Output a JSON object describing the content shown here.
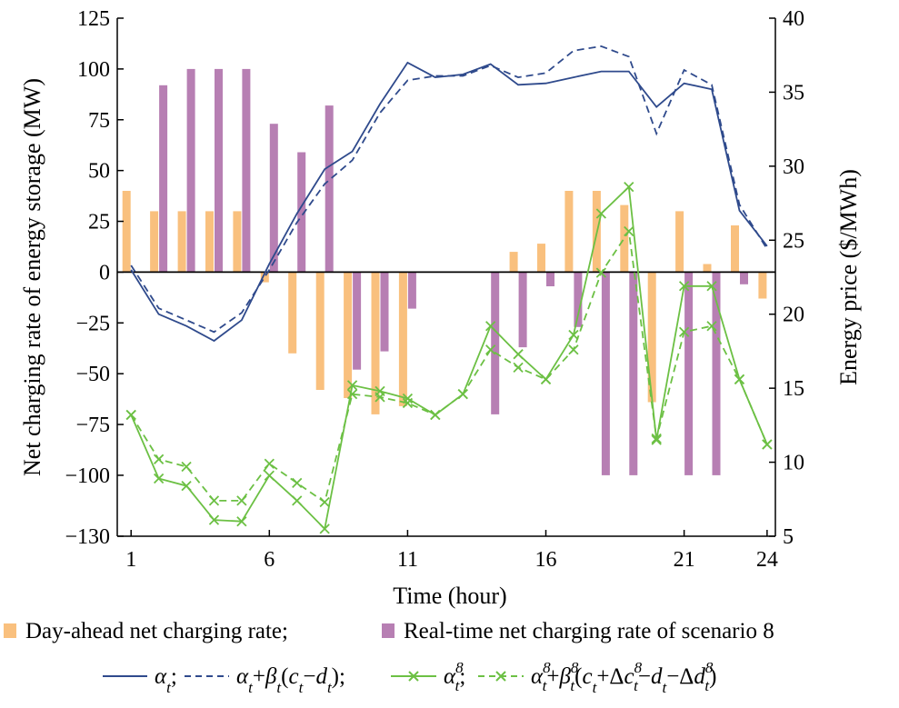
{
  "chart_data": {
    "type": "bar",
    "xlabel": "Time (hour)",
    "ylabel": "Net charging rate of energy storage (MW)",
    "ylabel_right": "Energy price ($/MWh)",
    "x_ticks": [
      1,
      6,
      11,
      16,
      21,
      24
    ],
    "x_range": [
      0.5,
      24.3
    ],
    "ylim_left": [
      -130,
      125
    ],
    "y_ticks_left": [
      125,
      100,
      75,
      50,
      25,
      0,
      -25,
      -50,
      -75,
      -100,
      -130
    ],
    "ylim_right": [
      5,
      40
    ],
    "y_ticks_right": [
      40,
      35,
      30,
      25,
      20,
      15,
      10,
      5
    ],
    "hours": [
      1,
      2,
      3,
      4,
      5,
      6,
      7,
      8,
      9,
      10,
      11,
      12,
      13,
      14,
      15,
      16,
      17,
      18,
      19,
      20,
      21,
      22,
      23,
      24
    ],
    "bar_series": [
      {
        "name": "Day-ahead net charging rate",
        "color": "#f9c07e",
        "values": [
          40,
          30,
          30,
          30,
          30,
          -5,
          -40,
          -58,
          -62,
          -70,
          -66,
          0,
          0,
          0,
          10,
          14,
          40,
          40,
          33,
          -64,
          30,
          4,
          23,
          -13
        ]
      },
      {
        "name": "Real-time net charging rate of scenario 8",
        "color": "#b77fb3",
        "values": [
          0,
          92,
          100,
          100,
          100,
          73,
          59,
          82,
          -48,
          -39,
          -18,
          0,
          0,
          -70,
          -37,
          -7,
          -27,
          -100,
          -100,
          0,
          -100,
          -100,
          -6,
          0
        ]
      }
    ],
    "line_series": [
      {
        "legend_text": "αt;",
        "color": "#2f4a8c",
        "style": "solid",
        "axis": "right",
        "values": [
          23.0,
          20.0,
          19.2,
          18.2,
          19.6,
          23.4,
          26.8,
          29.8,
          31.0,
          34.2,
          37.0,
          36.0,
          36.2,
          36.9,
          35.5,
          35.6,
          36.0,
          36.4,
          36.4,
          34.0,
          35.6,
          35.2,
          27.0,
          24.6
        ]
      },
      {
        "legend_text": "αt+βt(ct−dt);",
        "color": "#2f4a8c",
        "style": "dashed",
        "axis": "right",
        "values": [
          23.3,
          20.4,
          19.6,
          18.8,
          20.1,
          23.0,
          26.2,
          28.8,
          30.4,
          33.6,
          35.8,
          36.1,
          36.1,
          36.8,
          36.0,
          36.3,
          37.8,
          38.1,
          37.4,
          32.2,
          36.5,
          35.5,
          27.4,
          24.4
        ]
      },
      {
        "legend_text": "α8t;",
        "color": "#6cc044",
        "style": "solid-x",
        "axis": "right",
        "values": [
          13.2,
          8.9,
          8.4,
          6.1,
          6.0,
          9.1,
          7.4,
          5.5,
          15.2,
          14.8,
          14.3,
          13.2,
          14.6,
          19.2,
          17.3,
          15.6,
          18.6,
          26.8,
          28.6,
          11.5,
          21.9,
          21.9,
          15.6,
          11.2
        ]
      },
      {
        "legend_text": "α8t+β8t(ct+Δc8t−dt−Δd8t)",
        "color": "#6cc044",
        "style": "dashed-x",
        "axis": "right",
        "values": [
          13.2,
          10.2,
          9.7,
          7.4,
          7.4,
          9.9,
          8.6,
          7.3,
          14.6,
          14.4,
          14.0,
          13.2,
          14.6,
          17.6,
          16.4,
          15.6,
          17.6,
          22.8,
          25.6,
          11.6,
          18.8,
          19.2,
          15.6,
          11.2
        ]
      }
    ],
    "legend_row1_sep": ";"
  }
}
